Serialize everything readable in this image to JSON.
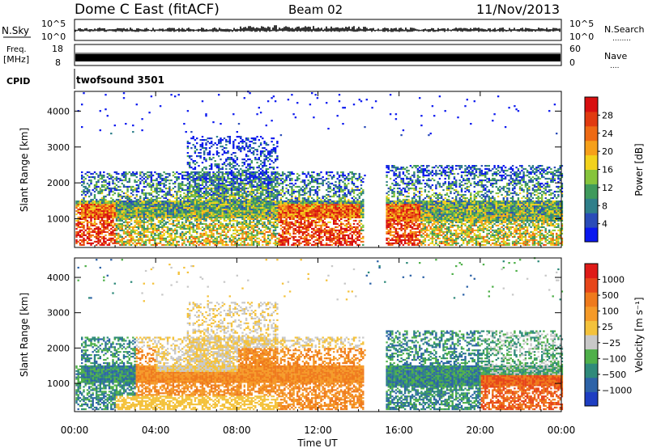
{
  "header": {
    "title": "Dome C East (fitACF)",
    "beam": "Beam 02",
    "date": "11/Nov/2013"
  },
  "panels": {
    "nsky": {
      "label": "N.Sky",
      "tick_top": "10^5",
      "tick_bottom": "10^0",
      "right_tick_top": "10^5",
      "right_tick_bottom": "10^0",
      "right_label": "N.Search",
      "right_dots": "........"
    },
    "freq": {
      "label_line1": "Freq.",
      "label_line2": "[MHz]",
      "tick_top": "18",
      "tick_bottom": "8",
      "right_tick_top": "60",
      "right_tick_bottom": "0",
      "right_label": "Nave",
      "right_dots": "...."
    },
    "cpid": {
      "label": "CPID",
      "program": "twofsound 3501"
    }
  },
  "chart_data": [
    {
      "type": "heatmap",
      "name": "power",
      "ylabel": "Slant Range [km]",
      "yticks": [
        1000,
        2000,
        3000,
        4000
      ],
      "ylim": [
        200,
        4550
      ],
      "colorbar": {
        "label": "Power [dB]",
        "ticks": [
          "4",
          "8",
          "12",
          "16",
          "20",
          "24",
          "28"
        ],
        "colors": [
          "#0a18ef",
          "#2a4cb8",
          "#2f7f8a",
          "#3f9a5c",
          "#86c43c",
          "#f2d21c",
          "#f6a01a",
          "#ee6a14",
          "#e13a10",
          "#d80f10"
        ]
      }
    },
    {
      "type": "heatmap",
      "name": "velocity",
      "ylabel": "Slant Range [km]",
      "yticks": [
        1000,
        2000,
        3000,
        4000
      ],
      "ylim": [
        200,
        4550
      ],
      "xlabel": "Time UT",
      "xticks": [
        "00:00",
        "04:00",
        "08:00",
        "12:00",
        "16:00",
        "20:00",
        "00:00"
      ],
      "colorbar": {
        "label": "Velocity [m s⁻¹]",
        "ticks": [
          "1000",
          "500",
          "100",
          "25",
          "−25",
          "−100",
          "−500",
          "−1000"
        ],
        "colors": [
          "#1e3ec2",
          "#2d63a8",
          "#2f8a7a",
          "#4fb04a",
          "#c8c8c8",
          "#f4c23c",
          "#f59a28",
          "#ef7a1c",
          "#e7461a",
          "#df1b18"
        ]
      }
    }
  ]
}
